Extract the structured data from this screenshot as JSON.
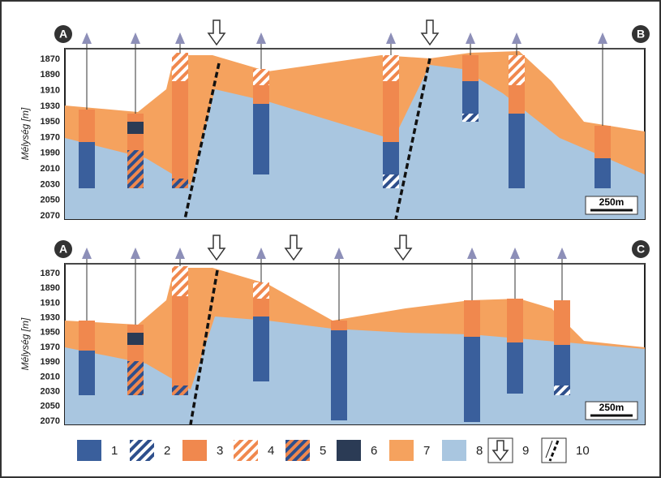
{
  "panels": [
    {
      "start_label": "A",
      "end_label": "B",
      "axis_label": "Mélység [m]",
      "depth_ticks": [
        1870,
        1890,
        1910,
        1930,
        1950,
        1970,
        1990,
        2010,
        2030,
        2050,
        2070
      ],
      "scale_bar": "250m"
    },
    {
      "start_label": "A",
      "end_label": "C",
      "axis_label": "Mélység [m]",
      "depth_ticks": [
        1870,
        1890,
        1910,
        1930,
        1950,
        1970,
        1990,
        2010,
        2030,
        2050,
        2070
      ],
      "scale_bar": "250m"
    }
  ],
  "legend": [
    "1",
    "2",
    "3",
    "4",
    "5",
    "6",
    "7",
    "8",
    "9",
    "10"
  ]
}
